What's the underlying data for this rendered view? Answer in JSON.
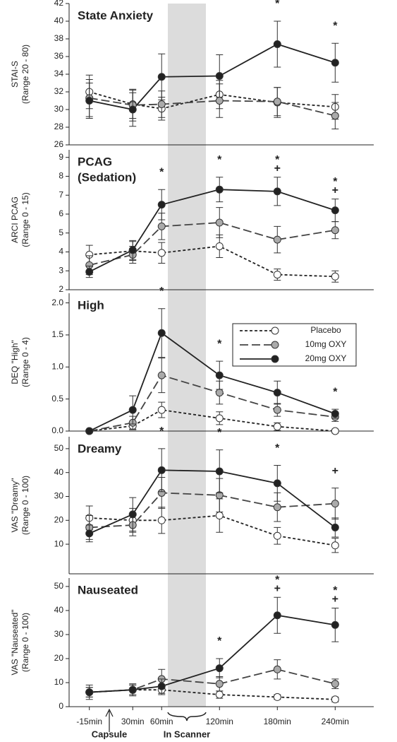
{
  "chart_data": [
    {
      "type": "line",
      "title": [
        "State Anxiety"
      ],
      "ylabel": [
        "STAI-S",
        "(Range 20 - 80)"
      ],
      "x": [
        -15,
        30,
        60,
        120,
        180,
        240
      ],
      "xlim": [
        -36,
        280
      ],
      "ylim": [
        26,
        42
      ],
      "yticks": [
        26,
        28,
        30,
        32,
        34,
        36,
        38,
        40,
        42
      ],
      "series": [
        {
          "color": "#ffffff",
          "line_color": "#222222",
          "line_style": "short-dash",
          "values": [
            32.0,
            30.6,
            30.1,
            31.7,
            30.8,
            30.3
          ],
          "errors": [
            1.9,
            1.6,
            1.3,
            1.6,
            1.7,
            1.4
          ]
        },
        {
          "color": "#aaaaaa",
          "line_color": "#444444",
          "line_style": "long-dash",
          "values": [
            31.3,
            30.5,
            30.6,
            31.0,
            30.9,
            29.3
          ],
          "errors": [
            2.1,
            1.8,
            1.5,
            1.9,
            1.6,
            1.5
          ]
        },
        {
          "color": "#222222",
          "line_color": "#222222",
          "line_style": "solid",
          "values": [
            31.0,
            30.0,
            33.7,
            33.8,
            37.4,
            35.3
          ],
          "errors": [
            2.0,
            1.9,
            2.6,
            2.4,
            2.6,
            2.2
          ]
        }
      ],
      "annotations": [
        {
          "text": "*",
          "x": 180
        },
        {
          "text": "*",
          "x": 240
        }
      ]
    },
    {
      "type": "line",
      "title": [
        "PCAG",
        "(Sedation)"
      ],
      "ylabel": [
        "ARCI PCAG",
        "(Range 0 - 15)"
      ],
      "x": [
        -15,
        30,
        60,
        120,
        180,
        240
      ],
      "xlim": [
        -36,
        280
      ],
      "ylim": [
        2,
        9.4
      ],
      "yticks": [
        2,
        3,
        4,
        5,
        6,
        7,
        8,
        9
      ],
      "series": [
        {
          "color": "#ffffff",
          "line_color": "#222222",
          "line_style": "short-dash",
          "values": [
            3.85,
            4.05,
            3.95,
            4.3,
            2.8,
            2.7
          ],
          "errors": [
            0.5,
            0.5,
            0.55,
            0.6,
            0.3,
            0.3
          ]
        },
        {
          "color": "#aaaaaa",
          "line_color": "#444444",
          "line_style": "long-dash",
          "values": [
            3.3,
            3.85,
            5.35,
            5.55,
            4.65,
            5.15
          ],
          "errors": [
            0.5,
            0.45,
            0.7,
            0.8,
            0.7,
            0.45
          ]
        },
        {
          "color": "#222222",
          "line_color": "#222222",
          "line_style": "solid",
          "values": [
            2.95,
            4.1,
            6.5,
            7.3,
            7.2,
            6.2
          ],
          "errors": [
            0.3,
            0.5,
            0.8,
            0.65,
            0.75,
            0.6
          ]
        }
      ],
      "annotations": [
        {
          "text": "*",
          "x": 60
        },
        {
          "text": "*",
          "x": 120
        },
        {
          "text": "*",
          "x": 180
        },
        {
          "text": "+",
          "x": 180
        },
        {
          "text": "*",
          "x": 240
        },
        {
          "text": "+",
          "x": 240
        }
      ]
    },
    {
      "type": "line",
      "title": [
        "High"
      ],
      "ylabel": [
        "DEQ \"High\"",
        "(Range 0 - 4)"
      ],
      "x": [
        -15,
        30,
        60,
        120,
        180,
        240
      ],
      "xlim": [
        -36,
        280
      ],
      "ylim": [
        0,
        2.15
      ],
      "yticks": [
        {
          "value": 0,
          "label": "0.0"
        },
        {
          "value": 0.5,
          "label": "0.5"
        },
        {
          "value": 1,
          "label": "1.0"
        },
        {
          "value": 1.5,
          "label": "1.5"
        },
        {
          "value": 2,
          "label": "2.0"
        }
      ],
      "legend": true,
      "series": [
        {
          "name": "Placebo",
          "color": "#ffffff",
          "line_color": "#222222",
          "line_style": "short-dash",
          "values": [
            0,
            0.08,
            0.33,
            0.2,
            0.07,
            0.0
          ],
          "errors": [
            0,
            0.06,
            0.12,
            0.1,
            0.06,
            0.03
          ]
        },
        {
          "name": "10mg OXY",
          "color": "#aaaaaa",
          "line_color": "#444444",
          "line_style": "long-dash",
          "values": [
            0,
            0.13,
            0.87,
            0.6,
            0.33,
            0.22
          ],
          "errors": [
            0,
            0.1,
            0.27,
            0.18,
            0.1,
            0.07
          ]
        },
        {
          "name": "20mg OXY",
          "color": "#222222",
          "line_color": "#222222",
          "line_style": "solid",
          "values": [
            0,
            0.33,
            1.53,
            0.87,
            0.6,
            0.27
          ],
          "errors": [
            0,
            0.22,
            0.38,
            0.22,
            0.18,
            0.07
          ]
        }
      ],
      "annotations": [
        {
          "text": "*",
          "x": 60
        },
        {
          "text": "*",
          "x": 120
        },
        {
          "text": "*",
          "x": 180
        },
        {
          "text": "*",
          "x": 240
        }
      ]
    },
    {
      "type": "line",
      "title": [
        "Dreamy"
      ],
      "ylabel": [
        "VAS \"Dreamy\"",
        "(Range 0 - 100)"
      ],
      "x": [
        -15,
        30,
        60,
        120,
        180,
        240
      ],
      "xlim": [
        -36,
        280
      ],
      "ylim": [
        -2.4,
        55
      ],
      "yticks": [
        10,
        20,
        30,
        40,
        50
      ],
      "series": [
        {
          "color": "#ffffff",
          "line_color": "#222222",
          "line_style": "short-dash",
          "values": [
            21,
            20,
            20,
            22,
            13.5,
            9.5
          ],
          "errors": [
            5,
            5,
            5.5,
            7,
            3.5,
            3
          ]
        },
        {
          "color": "#aaaaaa",
          "line_color": "#444444",
          "line_style": "long-dash",
          "values": [
            17,
            18,
            31.5,
            30.5,
            25.5,
            27
          ],
          "errors": [
            5,
            4.5,
            6.5,
            7,
            6,
            6.5
          ]
        },
        {
          "color": "#222222",
          "line_color": "#222222",
          "line_style": "solid",
          "values": [
            14.5,
            22.5,
            41,
            40.5,
            35.5,
            17
          ],
          "errors": [
            3.5,
            7,
            9,
            9,
            7.5,
            4
          ]
        }
      ],
      "annotations": [
        {
          "text": "*",
          "x": 60
        },
        {
          "text": "*",
          "x": 120
        },
        {
          "text": "*",
          "x": 180
        },
        {
          "text": "+",
          "x": 240
        }
      ]
    },
    {
      "type": "line",
      "title": [
        "Nauseated"
      ],
      "ylabel": [
        "VAS \"Nauseated\"",
        "(Range 0 - 100)"
      ],
      "x": [
        -15,
        30,
        60,
        120,
        180,
        240
      ],
      "xlim": [
        -36,
        280
      ],
      "ylim": [
        0,
        53.5
      ],
      "yticks": [
        0,
        10,
        20,
        30,
        40,
        50
      ],
      "xticks": [
        {
          "value": -15,
          "label": "-15min"
        },
        {
          "value": 30,
          "label": "30min"
        },
        {
          "value": 60,
          "label": "60min"
        },
        {
          "value": 120,
          "label": "120min"
        },
        {
          "value": 180,
          "label": "180min"
        },
        {
          "value": 240,
          "label": "240min"
        }
      ],
      "series": [
        {
          "color": "#ffffff",
          "line_color": "#222222",
          "line_style": "short-dash",
          "values": [
            6,
            7,
            7,
            5,
            4,
            3
          ],
          "errors": [
            2,
            2,
            2,
            1.5,
            1,
            1
          ]
        },
        {
          "color": "#aaaaaa",
          "line_color": "#444444",
          "line_style": "long-dash",
          "values": [
            6,
            7,
            11.5,
            9.5,
            15.5,
            9.5
          ],
          "errors": [
            2,
            2,
            4,
            3,
            4,
            2
          ]
        },
        {
          "color": "#222222",
          "line_color": "#222222",
          "line_style": "solid",
          "values": [
            6,
            7,
            8.5,
            16,
            38,
            34
          ],
          "errors": [
            3,
            2.5,
            3,
            4,
            7.5,
            7
          ]
        }
      ],
      "annotations": [
        {
          "text": "*",
          "x": 120
        },
        {
          "text": "*",
          "x": 180
        },
        {
          "text": "+",
          "x": 180
        },
        {
          "text": "*",
          "x": 240
        },
        {
          "text": "+",
          "x": 240
        }
      ],
      "notes": [
        "Capsule",
        "In Scanner"
      ]
    }
  ]
}
